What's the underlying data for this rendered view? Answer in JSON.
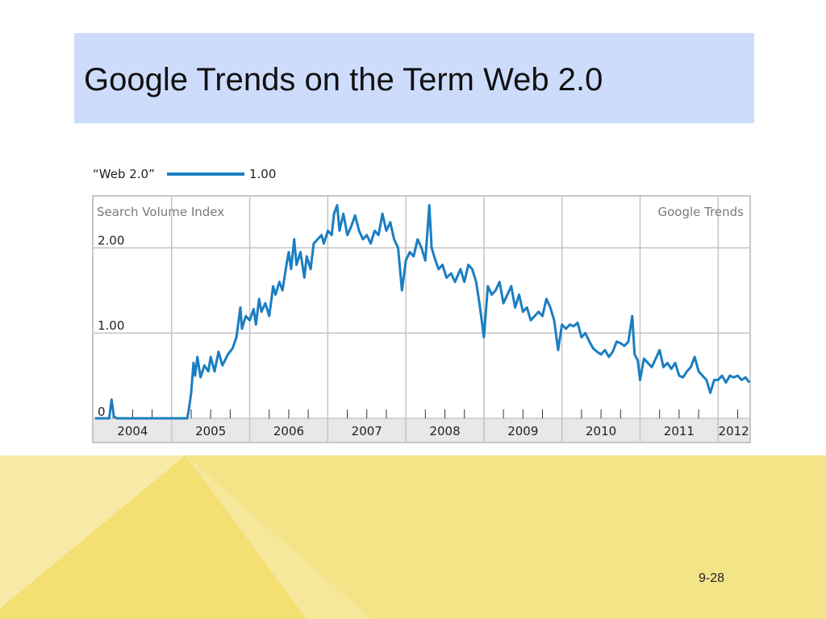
{
  "slide": {
    "title": "Google Trends on the Term Web 2.0",
    "page_number": "9-28"
  },
  "colors": {
    "title_band": "#cddcfb",
    "line": "#1a7ec2",
    "footer_base": "#f4e488",
    "footer_light": "#f7eaa6",
    "footer_mid": "#f3df72"
  },
  "chart_data": {
    "type": "line",
    "legend": {
      "label": "“Web 2.0”",
      "value": "1.00"
    },
    "ylabel": "Search Volume Index",
    "watermark": "Google Trends",
    "ylim": [
      0,
      2.6
    ],
    "xlim": [
      2004.0,
      2012.4
    ],
    "grid": true,
    "y_ticks": [
      {
        "value": 0,
        "label": "0"
      },
      {
        "value": 1,
        "label": "1.00"
      },
      {
        "value": 2,
        "label": "2.00"
      }
    ],
    "x_ticks": [
      "2004",
      "2005",
      "2006",
      "2007",
      "2008",
      "2009",
      "2010",
      "2011",
      "2012"
    ],
    "series": [
      {
        "name": "“Web 2.0”",
        "points": [
          [
            2004.02,
            0
          ],
          [
            2004.2,
            0
          ],
          [
            2004.23,
            0.22
          ],
          [
            2004.26,
            0.02
          ],
          [
            2004.3,
            0
          ],
          [
            2005.0,
            0
          ],
          [
            2005.2,
            0
          ],
          [
            2005.22,
            0.1
          ],
          [
            2005.25,
            0.3
          ],
          [
            2005.28,
            0.65
          ],
          [
            2005.3,
            0.5
          ],
          [
            2005.33,
            0.72
          ],
          [
            2005.37,
            0.48
          ],
          [
            2005.42,
            0.62
          ],
          [
            2005.47,
            0.55
          ],
          [
            2005.5,
            0.72
          ],
          [
            2005.55,
            0.55
          ],
          [
            2005.6,
            0.78
          ],
          [
            2005.65,
            0.62
          ],
          [
            2005.72,
            0.75
          ],
          [
            2005.78,
            0.82
          ],
          [
            2005.83,
            0.95
          ],
          [
            2005.88,
            1.3
          ],
          [
            2005.9,
            1.05
          ],
          [
            2005.95,
            1.2
          ],
          [
            2006.0,
            1.15
          ],
          [
            2006.05,
            1.28
          ],
          [
            2006.08,
            1.1
          ],
          [
            2006.12,
            1.4
          ],
          [
            2006.15,
            1.25
          ],
          [
            2006.2,
            1.35
          ],
          [
            2006.25,
            1.2
          ],
          [
            2006.3,
            1.55
          ],
          [
            2006.33,
            1.45
          ],
          [
            2006.38,
            1.6
          ],
          [
            2006.42,
            1.5
          ],
          [
            2006.47,
            1.8
          ],
          [
            2006.5,
            1.95
          ],
          [
            2006.53,
            1.75
          ],
          [
            2006.57,
            2.1
          ],
          [
            2006.6,
            1.8
          ],
          [
            2006.65,
            1.95
          ],
          [
            2006.7,
            1.65
          ],
          [
            2006.73,
            1.9
          ],
          [
            2006.78,
            1.75
          ],
          [
            2006.82,
            2.05
          ],
          [
            2006.87,
            2.1
          ],
          [
            2006.92,
            2.15
          ],
          [
            2006.95,
            2.05
          ],
          [
            2007.0,
            2.2
          ],
          [
            2007.05,
            2.15
          ],
          [
            2007.08,
            2.4
          ],
          [
            2007.12,
            2.5
          ],
          [
            2007.15,
            2.2
          ],
          [
            2007.2,
            2.4
          ],
          [
            2007.25,
            2.15
          ],
          [
            2007.3,
            2.25
          ],
          [
            2007.35,
            2.38
          ],
          [
            2007.4,
            2.2
          ],
          [
            2007.45,
            2.1
          ],
          [
            2007.5,
            2.15
          ],
          [
            2007.55,
            2.05
          ],
          [
            2007.6,
            2.2
          ],
          [
            2007.65,
            2.15
          ],
          [
            2007.7,
            2.4
          ],
          [
            2007.75,
            2.2
          ],
          [
            2007.8,
            2.3
          ],
          [
            2007.85,
            2.1
          ],
          [
            2007.9,
            2.0
          ],
          [
            2007.95,
            1.5
          ],
          [
            2008.0,
            1.85
          ],
          [
            2008.05,
            1.95
          ],
          [
            2008.1,
            1.9
          ],
          [
            2008.15,
            2.1
          ],
          [
            2008.2,
            2.0
          ],
          [
            2008.25,
            1.85
          ],
          [
            2008.3,
            2.5
          ],
          [
            2008.33,
            2.0
          ],
          [
            2008.38,
            1.85
          ],
          [
            2008.42,
            1.75
          ],
          [
            2008.47,
            1.8
          ],
          [
            2008.52,
            1.65
          ],
          [
            2008.58,
            1.7
          ],
          [
            2008.63,
            1.6
          ],
          [
            2008.7,
            1.75
          ],
          [
            2008.75,
            1.6
          ],
          [
            2008.8,
            1.8
          ],
          [
            2008.85,
            1.75
          ],
          [
            2008.9,
            1.6
          ],
          [
            2008.95,
            1.3
          ],
          [
            2009.0,
            0.95
          ],
          [
            2009.05,
            1.55
          ],
          [
            2009.1,
            1.45
          ],
          [
            2009.15,
            1.5
          ],
          [
            2009.2,
            1.6
          ],
          [
            2009.25,
            1.35
          ],
          [
            2009.3,
            1.45
          ],
          [
            2009.35,
            1.55
          ],
          [
            2009.4,
            1.3
          ],
          [
            2009.45,
            1.45
          ],
          [
            2009.5,
            1.25
          ],
          [
            2009.55,
            1.3
          ],
          [
            2009.6,
            1.15
          ],
          [
            2009.65,
            1.2
          ],
          [
            2009.7,
            1.25
          ],
          [
            2009.75,
            1.2
          ],
          [
            2009.8,
            1.4
          ],
          [
            2009.85,
            1.3
          ],
          [
            2009.9,
            1.15
          ],
          [
            2009.95,
            0.8
          ],
          [
            2010.0,
            1.1
          ],
          [
            2010.05,
            1.05
          ],
          [
            2010.1,
            1.1
          ],
          [
            2010.15,
            1.08
          ],
          [
            2010.2,
            1.12
          ],
          [
            2010.25,
            0.95
          ],
          [
            2010.3,
            1.0
          ],
          [
            2010.35,
            0.9
          ],
          [
            2010.4,
            0.82
          ],
          [
            2010.45,
            0.78
          ],
          [
            2010.5,
            0.75
          ],
          [
            2010.55,
            0.8
          ],
          [
            2010.6,
            0.72
          ],
          [
            2010.65,
            0.78
          ],
          [
            2010.7,
            0.9
          ],
          [
            2010.75,
            0.88
          ],
          [
            2010.8,
            0.85
          ],
          [
            2010.85,
            0.9
          ],
          [
            2010.9,
            1.2
          ],
          [
            2010.93,
            0.75
          ],
          [
            2010.97,
            0.68
          ],
          [
            2011.0,
            0.45
          ],
          [
            2011.05,
            0.7
          ],
          [
            2011.1,
            0.65
          ],
          [
            2011.15,
            0.6
          ],
          [
            2011.2,
            0.7
          ],
          [
            2011.25,
            0.8
          ],
          [
            2011.3,
            0.6
          ],
          [
            2011.35,
            0.65
          ],
          [
            2011.4,
            0.58
          ],
          [
            2011.45,
            0.65
          ],
          [
            2011.5,
            0.5
          ],
          [
            2011.55,
            0.48
          ],
          [
            2011.6,
            0.55
          ],
          [
            2011.65,
            0.6
          ],
          [
            2011.7,
            0.72
          ],
          [
            2011.75,
            0.55
          ],
          [
            2011.8,
            0.5
          ],
          [
            2011.85,
            0.45
          ],
          [
            2011.9,
            0.3
          ],
          [
            2011.95,
            0.45
          ],
          [
            2012.0,
            0.45
          ],
          [
            2012.05,
            0.5
          ],
          [
            2012.1,
            0.42
          ],
          [
            2012.15,
            0.5
          ],
          [
            2012.2,
            0.48
          ],
          [
            2012.25,
            0.5
          ],
          [
            2012.3,
            0.45
          ],
          [
            2012.35,
            0.48
          ],
          [
            2012.4,
            0.42
          ]
        ]
      }
    ]
  }
}
